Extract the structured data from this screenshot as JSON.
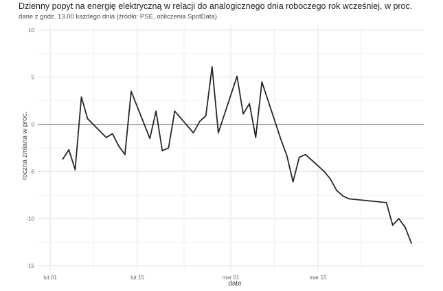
{
  "chart_data": {
    "type": "line",
    "title": "Dzienny popyt na energię elektryczną w relacji do analogicznego dnia roboczego rok wcześniej, w proc.",
    "subtitle": "dane z godz. 13.00 każdego dnia (źródło: PSE, obliczenia SpotData)",
    "xlabel": "date",
    "ylabel": "roczna zmiana w proc.",
    "ylim": [
      -15.5,
      10.5
    ],
    "xlim": [
      "2020-01-30",
      "2020-04-01"
    ],
    "y_ticks": [
      10,
      5,
      0,
      -5,
      -10,
      -15
    ],
    "x_ticks": [
      {
        "date": "2020-02-01",
        "label": "lut 01"
      },
      {
        "date": "2020-02-15",
        "label": "lut 15"
      },
      {
        "date": "2020-03-01",
        "label": "mar 01"
      },
      {
        "date": "2020-03-15",
        "label": "mar 15"
      }
    ],
    "grid": true,
    "reference_line_y": 0,
    "line_color": "#262626",
    "series": [
      {
        "points": [
          {
            "x": "2020-02-03",
            "y": -3.7
          },
          {
            "x": "2020-02-04",
            "y": -2.7
          },
          {
            "x": "2020-02-05",
            "y": -4.8
          },
          {
            "x": "2020-02-06",
            "y": 2.9
          },
          {
            "x": "2020-02-07",
            "y": 0.6
          },
          {
            "x": "2020-02-10",
            "y": -1.4
          },
          {
            "x": "2020-02-11",
            "y": -1.0
          },
          {
            "x": "2020-02-12",
            "y": -2.3
          },
          {
            "x": "2020-02-13",
            "y": -3.2
          },
          {
            "x": "2020-02-14",
            "y": 3.5
          },
          {
            "x": "2020-02-17",
            "y": -1.5
          },
          {
            "x": "2020-02-18",
            "y": 1.4
          },
          {
            "x": "2020-02-19",
            "y": -2.8
          },
          {
            "x": "2020-02-20",
            "y": -2.5
          },
          {
            "x": "2020-02-21",
            "y": 1.4
          },
          {
            "x": "2020-02-24",
            "y": -0.9
          },
          {
            "x": "2020-02-25",
            "y": 0.3
          },
          {
            "x": "2020-02-26",
            "y": 0.9
          },
          {
            "x": "2020-02-27",
            "y": 6.1
          },
          {
            "x": "2020-02-28",
            "y": -0.9
          },
          {
            "x": "2020-03-02",
            "y": 5.1
          },
          {
            "x": "2020-03-03",
            "y": 1.1
          },
          {
            "x": "2020-03-04",
            "y": 2.2
          },
          {
            "x": "2020-03-05",
            "y": -1.4
          },
          {
            "x": "2020-03-06",
            "y": 4.5
          },
          {
            "x": "2020-03-09",
            "y": -1.5
          },
          {
            "x": "2020-03-10",
            "y": -3.3
          },
          {
            "x": "2020-03-11",
            "y": -6.1
          },
          {
            "x": "2020-03-12",
            "y": -3.5
          },
          {
            "x": "2020-03-13",
            "y": -3.2
          },
          {
            "x": "2020-03-16",
            "y": -5.0
          },
          {
            "x": "2020-03-17",
            "y": -5.8
          },
          {
            "x": "2020-03-18",
            "y": -7.0
          },
          {
            "x": "2020-03-19",
            "y": -7.6
          },
          {
            "x": "2020-03-20",
            "y": -7.9
          },
          {
            "x": "2020-03-23",
            "y": -8.1
          },
          {
            "x": "2020-03-26",
            "y": -8.3
          },
          {
            "x": "2020-03-27",
            "y": -10.7
          },
          {
            "x": "2020-03-28",
            "y": -10.0
          },
          {
            "x": "2020-03-29",
            "y": -10.9
          },
          {
            "x": "2020-03-30",
            "y": -12.6
          }
        ]
      }
    ]
  }
}
